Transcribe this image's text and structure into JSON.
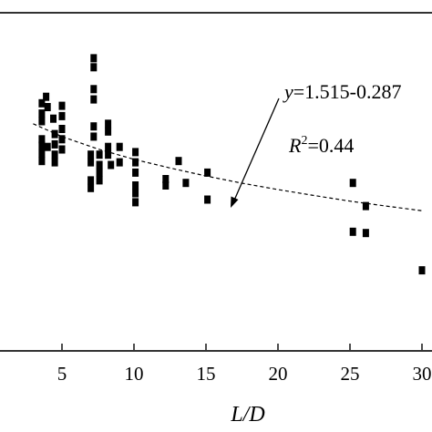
{
  "chart_data": {
    "type": "scatter",
    "xlabel": "L/D",
    "ylabel": "",
    "xlim": [
      0.5,
      30.5
    ],
    "ylim": [
      0,
      1.2
    ],
    "x_ticks": [
      5,
      10,
      15,
      20,
      25,
      30
    ],
    "x_tick_labels": [
      "5",
      "10",
      "15",
      "20",
      "25",
      "30"
    ],
    "grid": false,
    "legend": "none",
    "marker_color": "#000000",
    "marker": "square",
    "series": [
      {
        "points": [
          [
            3.6,
            0.96
          ],
          [
            3.9,
            0.985
          ],
          [
            4.0,
            0.945
          ],
          [
            3.6,
            0.92
          ],
          [
            3.6,
            0.89
          ],
          [
            3.6,
            0.82
          ],
          [
            3.6,
            0.795
          ],
          [
            3.6,
            0.765
          ],
          [
            3.6,
            0.735
          ],
          [
            4.0,
            0.79
          ],
          [
            4.4,
            0.9
          ],
          [
            4.5,
            0.84
          ],
          [
            4.5,
            0.8
          ],
          [
            4.5,
            0.76
          ],
          [
            4.5,
            0.73
          ],
          [
            5.0,
            0.95
          ],
          [
            5.0,
            0.91
          ],
          [
            5.0,
            0.86
          ],
          [
            5.0,
            0.82
          ],
          [
            5.0,
            0.78
          ],
          [
            7.2,
            1.135
          ],
          [
            7.2,
            1.1
          ],
          [
            7.2,
            1.015
          ],
          [
            7.2,
            0.975
          ],
          [
            7.2,
            0.87
          ],
          [
            7.2,
            0.83
          ],
          [
            7.0,
            0.76
          ],
          [
            7.0,
            0.73
          ],
          [
            7.6,
            0.76
          ],
          [
            7.6,
            0.72
          ],
          [
            7.0,
            0.66
          ],
          [
            7.0,
            0.63
          ],
          [
            7.6,
            0.69
          ],
          [
            7.6,
            0.66
          ],
          [
            8.2,
            0.79
          ],
          [
            8.2,
            0.76
          ],
          [
            8.4,
            0.72
          ],
          [
            8.2,
            0.88
          ],
          [
            8.2,
            0.85
          ],
          [
            9.0,
            0.73
          ],
          [
            9.0,
            0.79
          ],
          [
            10.1,
            0.77
          ],
          [
            10.1,
            0.73
          ],
          [
            10.1,
            0.69
          ],
          [
            10.1,
            0.64
          ],
          [
            10.1,
            0.61
          ],
          [
            10.1,
            0.575
          ],
          [
            12.2,
            0.665
          ],
          [
            12.2,
            0.64
          ],
          [
            13.1,
            0.735
          ],
          [
            13.6,
            0.65
          ],
          [
            15.1,
            0.69
          ],
          [
            15.1,
            0.585
          ],
          [
            25.2,
            0.65
          ],
          [
            26.1,
            0.56
          ],
          [
            25.2,
            0.46
          ],
          [
            26.1,
            0.455
          ],
          [
            30.0,
            0.31
          ]
        ]
      }
    ],
    "trendline": {
      "style": "dashed",
      "points": [
        [
          3.0,
          0.88
        ],
        [
          5.0,
          0.83
        ],
        [
          7.5,
          0.782
        ],
        [
          10.0,
          0.742
        ],
        [
          12.5,
          0.708
        ],
        [
          15.0,
          0.677
        ],
        [
          17.5,
          0.649
        ],
        [
          20.0,
          0.624
        ],
        [
          22.5,
          0.601
        ],
        [
          25.0,
          0.579
        ],
        [
          27.5,
          0.56
        ],
        [
          30.0,
          0.542
        ]
      ]
    },
    "annotations": {
      "equation_var": "y",
      "equation_rest": "=1.515-0.287",
      "r2_var": "R",
      "r2_sup": "2",
      "r2_rest": "=0.44"
    }
  }
}
